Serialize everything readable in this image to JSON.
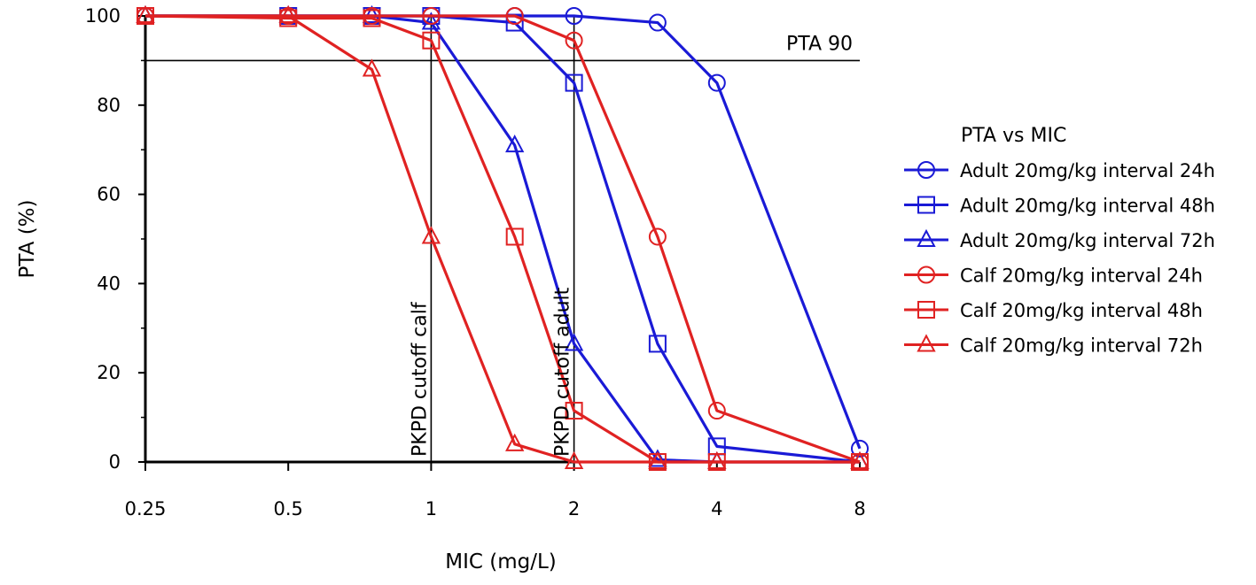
{
  "chart_data": {
    "type": "line",
    "title": "",
    "xlabel": "MIC (mg/L)",
    "ylabel": "PTA (%)",
    "x_scale": "log2",
    "x": [
      0.25,
      0.5,
      0.75,
      1,
      1.5,
      2,
      3,
      4,
      8
    ],
    "x_ticks": [
      0.25,
      0.5,
      1,
      2,
      4,
      8
    ],
    "x_tick_labels": [
      "0.25",
      "0.5",
      "1",
      "2",
      "4",
      "8"
    ],
    "ylim": [
      0,
      100
    ],
    "y_ticks": [
      0,
      20,
      40,
      60,
      80,
      100
    ],
    "y_tick_labels": [
      "0",
      "20",
      "40",
      "60",
      "80",
      "100"
    ],
    "reference_lines": [
      {
        "orientation": "horizontal",
        "value": 90,
        "label": "PTA 90"
      },
      {
        "orientation": "vertical",
        "value": 1,
        "label": "PKPD cutoff calf"
      },
      {
        "orientation": "vertical",
        "value": 2,
        "label": "PKPD cutoff adult"
      }
    ],
    "legend": {
      "title": "PTA vs MIC",
      "position": "right"
    },
    "series": [
      {
        "name": "Adult 20mg/kg interval 24h",
        "color": "#1a1ad6",
        "marker": "circle",
        "values": [
          100,
          100,
          100,
          100,
          100,
          100,
          98.5,
          85,
          3
        ]
      },
      {
        "name": "Adult 20mg/kg interval 48h",
        "color": "#1a1ad6",
        "marker": "square",
        "values": [
          100,
          100,
          100,
          100,
          98.5,
          85,
          26.5,
          3.5,
          0
        ]
      },
      {
        "name": "Adult 20mg/kg interval 72h",
        "color": "#1a1ad6",
        "marker": "triangle",
        "values": [
          100,
          100,
          100,
          98.5,
          71,
          26.5,
          0.5,
          0,
          0
        ]
      },
      {
        "name": "Calf 20mg/kg interval 24h",
        "color": "#e02222",
        "marker": "circle",
        "values": [
          100,
          100,
          100,
          100,
          100,
          94.5,
          50.5,
          11.5,
          0
        ]
      },
      {
        "name": "Calf 20mg/kg interval 48h",
        "color": "#e02222",
        "marker": "square",
        "values": [
          100,
          99.5,
          99.5,
          94.5,
          50.5,
          11.5,
          0,
          0,
          0
        ]
      },
      {
        "name": "Calf 20mg/kg interval 72h",
        "color": "#e02222",
        "marker": "triangle",
        "values": [
          100,
          100,
          88,
          50.5,
          4,
          0,
          0,
          0,
          0
        ]
      }
    ]
  }
}
